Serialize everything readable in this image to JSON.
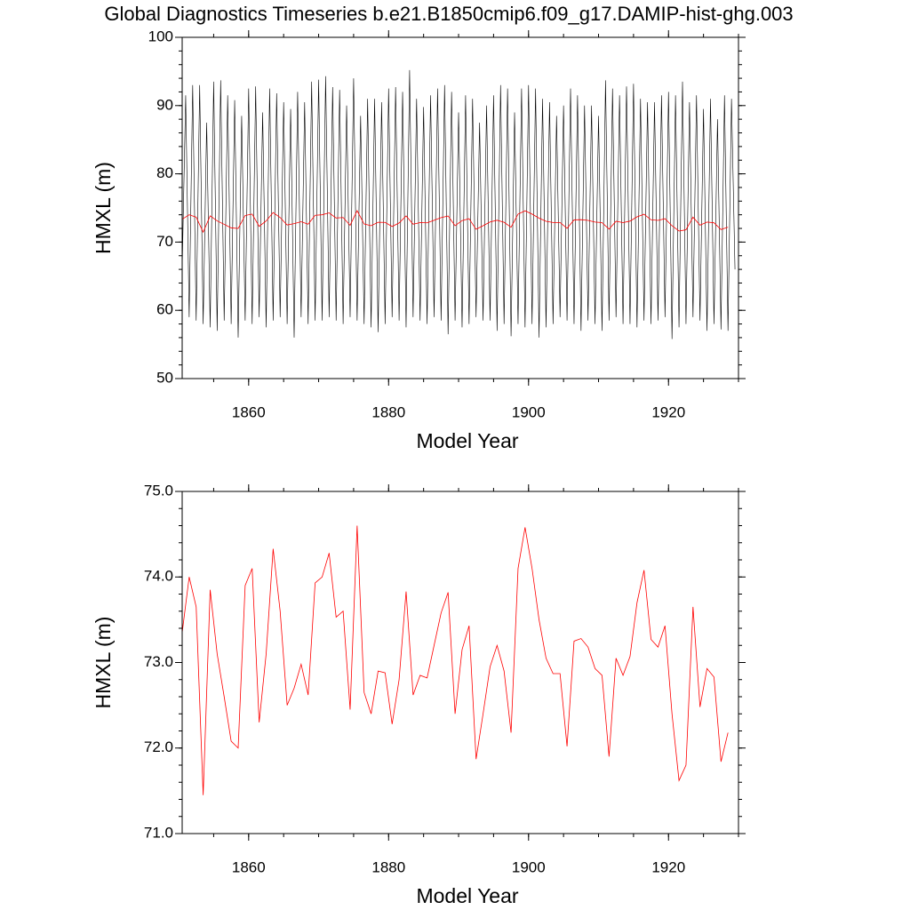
{
  "chart_data": [
    {
      "type": "line",
      "title": "Global Diagnostics Timeseries b.e21.B1850cmip6.f09_g17.DAMIP-hist-ghg.003",
      "xlabel": "Model Year",
      "ylabel": "HMXL (m)",
      "xlim": [
        1850.5,
        1930
      ],
      "xticks": [
        1860,
        1880,
        1900,
        1920
      ],
      "ylim": [
        50,
        100
      ],
      "yticks": [
        50,
        60,
        70,
        80,
        90,
        100
      ],
      "grid": false,
      "series": [
        {
          "color": "#000000",
          "x": [
            1850.5,
            1851,
            1851.5,
            1852,
            1852.5,
            1853,
            1853.5,
            1854,
            1854.5,
            1855,
            1855.5,
            1856,
            1856.5,
            1857,
            1857.5,
            1858,
            1858.5,
            1859,
            1859.5,
            1860,
            1860.5,
            1861,
            1861.5,
            1862,
            1862.5,
            1863,
            1863.5,
            1864,
            1864.5,
            1865,
            1865.5,
            1866,
            1866.5,
            1867,
            1867.5,
            1868,
            1868.5,
            1869,
            1869.5,
            1870,
            1870.5,
            1871,
            1871.5,
            1872,
            1872.5,
            1873,
            1873.5,
            1874,
            1874.5,
            1875,
            1875.5,
            1876,
            1876.5,
            1877,
            1877.5,
            1878,
            1878.5,
            1879,
            1879.5,
            1880,
            1880.5,
            1881,
            1881.5,
            1882,
            1882.5,
            1883,
            1883.5,
            1884,
            1884.5,
            1885,
            1885.5,
            1886,
            1886.5,
            1887,
            1887.5,
            1888,
            1888.5,
            1889,
            1889.5,
            1890,
            1890.5,
            1891,
            1891.5,
            1892,
            1892.5,
            1893,
            1893.5,
            1894,
            1894.5,
            1895,
            1895.5,
            1896,
            1896.5,
            1897,
            1897.5,
            1898,
            1898.5,
            1899,
            1899.5,
            1900,
            1900.5,
            1901,
            1901.5,
            1902,
            1902.5,
            1903,
            1903.5,
            1904,
            1904.5,
            1905,
            1905.5,
            1906,
            1906.5,
            1907,
            1907.5,
            1908,
            1908.5,
            1909,
            1909.5,
            1910,
            1910.5,
            1911,
            1911.5,
            1912,
            1912.5,
            1913,
            1913.5,
            1914,
            1914.5,
            1915,
            1915.5,
            1916,
            1916.5,
            1917,
            1917.5,
            1918,
            1918.5,
            1919,
            1919.5,
            1920,
            1920.5,
            1921,
            1921.5,
            1922,
            1922.5,
            1923,
            1923.5,
            1924,
            1924.5,
            1925,
            1925.5,
            1926,
            1926.5,
            1927,
            1927.5,
            1928,
            1928.5,
            1929,
            1929.5
          ],
          "values": [
            66,
            91.5,
            59,
            93,
            58.5,
            93,
            58,
            87.5,
            57.5,
            93.5,
            57,
            93.7,
            58.5,
            91.5,
            58,
            90.8,
            56,
            88.5,
            58.5,
            92.5,
            58,
            92.8,
            59,
            89,
            57.5,
            92.5,
            58.5,
            91.8,
            59,
            90.5,
            58,
            89.5,
            56,
            92,
            59,
            90.5,
            58,
            93.5,
            58.5,
            93.8,
            58.5,
            94.3,
            59,
            92.7,
            58.5,
            92.3,
            58,
            90,
            59,
            94,
            58.5,
            88.5,
            58,
            91,
            57.5,
            91,
            56.8,
            90.5,
            58,
            92.5,
            59,
            92.7,
            58.5,
            92,
            57.5,
            95.2,
            59,
            91,
            58.5,
            89.8,
            58,
            91.5,
            59,
            92.5,
            58.5,
            93,
            56.5,
            92,
            58.5,
            89,
            57.5,
            91.5,
            58,
            91,
            59,
            87.5,
            58.5,
            90,
            58.5,
            91.5,
            57,
            93,
            58,
            92.5,
            56.2,
            89,
            58,
            92.5,
            57.5,
            93,
            58,
            92.5,
            56,
            91,
            57.5,
            90.5,
            58,
            88.5,
            59,
            90,
            58.5,
            92.5,
            58,
            91.5,
            57,
            90,
            58.5,
            90,
            58,
            88.5,
            57,
            93.7,
            58.5,
            92.5,
            59,
            91.5,
            58,
            92.8,
            58,
            93.2,
            57.5,
            91,
            58.5,
            90.5,
            58,
            90.5,
            58.5,
            91.5,
            59,
            92,
            55.8,
            91.5,
            57.5,
            93.5,
            58,
            90.5,
            59,
            91.5,
            58.5,
            89.5,
            57,
            91,
            58,
            88,
            57.2,
            91.5,
            57,
            91,
            66
          ]
        },
        {
          "color": "#ff0000",
          "x": [
            1850.5,
            1851.5,
            1852.5,
            1853.5,
            1854.5,
            1855.5,
            1856.5,
            1857.5,
            1858.5,
            1859.5,
            1860.5,
            1861.5,
            1862.5,
            1863.5,
            1864.5,
            1865.5,
            1866.5,
            1867.5,
            1868.5,
            1869.5,
            1870.5,
            1871.5,
            1872.5,
            1873.5,
            1874.5,
            1875.5,
            1876.5,
            1877.5,
            1878.5,
            1879.5,
            1880.5,
            1881.5,
            1882.5,
            1883.5,
            1884.5,
            1885.5,
            1886.5,
            1887.5,
            1888.5,
            1889.5,
            1890.5,
            1891.5,
            1892.5,
            1893.5,
            1894.5,
            1895.5,
            1896.5,
            1897.5,
            1898.5,
            1899.5,
            1900.5,
            1901.5,
            1902.5,
            1903.5,
            1904.5,
            1905.5,
            1906.5,
            1907.5,
            1908.5,
            1909.5,
            1910.5,
            1911.5,
            1912.5,
            1913.5,
            1914.5,
            1915.5,
            1916.5,
            1917.5,
            1918.5,
            1919.5,
            1920.5,
            1921.5,
            1922.5,
            1923.5,
            1924.5,
            1925.5,
            1926.5,
            1927.5,
            1928.5
          ],
          "values": [
            73.35,
            74.0,
            73.65,
            71.45,
            73.85,
            73.1,
            72.6,
            72.08,
            72.0,
            73.9,
            74.1,
            72.3,
            73.1,
            74.33,
            73.6,
            72.5,
            72.7,
            72.98,
            72.62,
            73.93,
            74.0,
            74.28,
            73.53,
            73.6,
            72.45,
            74.6,
            72.65,
            72.4,
            72.9,
            72.88,
            72.28,
            72.8,
            73.83,
            72.62,
            72.85,
            72.82,
            73.2,
            73.58,
            73.82,
            72.4,
            73.15,
            73.43,
            71.87,
            72.4,
            72.95,
            73.2,
            72.9,
            72.18,
            74.1,
            74.58,
            74.1,
            73.5,
            73.05,
            72.87,
            72.87,
            72.02,
            73.25,
            73.28,
            73.18,
            72.93,
            72.85,
            71.9,
            73.05,
            72.85,
            73.07,
            73.7,
            74.08,
            73.27,
            73.18,
            73.43,
            72.4,
            71.62,
            71.8,
            73.65,
            72.48,
            72.93,
            72.83,
            71.84,
            72.18
          ]
        }
      ]
    },
    {
      "type": "line",
      "xlabel": "Model Year",
      "ylabel": "HMXL (m)",
      "xlim": [
        1850.5,
        1930
      ],
      "xticks": [
        1860,
        1880,
        1900,
        1920
      ],
      "ylim": [
        71,
        75
      ],
      "yticks": [
        {
          "value": 71,
          "label": "71.0"
        },
        {
          "value": 72,
          "label": "72.0"
        },
        {
          "value": 73,
          "label": "73.0"
        },
        {
          "value": 74,
          "label": "74.0"
        },
        {
          "value": 75,
          "label": "75.0"
        }
      ],
      "grid": false,
      "series": [
        {
          "color": "#ff0000",
          "x": [
            1850.5,
            1851.5,
            1852.5,
            1853.5,
            1854.5,
            1855.5,
            1856.5,
            1857.5,
            1858.5,
            1859.5,
            1860.5,
            1861.5,
            1862.5,
            1863.5,
            1864.5,
            1865.5,
            1866.5,
            1867.5,
            1868.5,
            1869.5,
            1870.5,
            1871.5,
            1872.5,
            1873.5,
            1874.5,
            1875.5,
            1876.5,
            1877.5,
            1878.5,
            1879.5,
            1880.5,
            1881.5,
            1882.5,
            1883.5,
            1884.5,
            1885.5,
            1886.5,
            1887.5,
            1888.5,
            1889.5,
            1890.5,
            1891.5,
            1892.5,
            1893.5,
            1894.5,
            1895.5,
            1896.5,
            1897.5,
            1898.5,
            1899.5,
            1900.5,
            1901.5,
            1902.5,
            1903.5,
            1904.5,
            1905.5,
            1906.5,
            1907.5,
            1908.5,
            1909.5,
            1910.5,
            1911.5,
            1912.5,
            1913.5,
            1914.5,
            1915.5,
            1916.5,
            1917.5,
            1918.5,
            1919.5,
            1920.5,
            1921.5,
            1922.5,
            1923.5,
            1924.5,
            1925.5,
            1926.5,
            1927.5,
            1928.5
          ],
          "values": [
            73.35,
            74.0,
            73.65,
            71.45,
            73.85,
            73.1,
            72.6,
            72.08,
            72.0,
            73.9,
            74.1,
            72.3,
            73.1,
            74.33,
            73.6,
            72.5,
            72.7,
            72.98,
            72.62,
            73.93,
            74.0,
            74.28,
            73.53,
            73.6,
            72.45,
            74.6,
            72.65,
            72.4,
            72.9,
            72.88,
            72.28,
            72.8,
            73.83,
            72.62,
            72.85,
            72.82,
            73.2,
            73.58,
            73.82,
            72.4,
            73.15,
            73.43,
            71.87,
            72.4,
            72.95,
            73.2,
            72.9,
            72.18,
            74.1,
            74.58,
            74.1,
            73.5,
            73.05,
            72.87,
            72.87,
            72.02,
            73.25,
            73.28,
            73.18,
            72.93,
            72.85,
            71.9,
            73.05,
            72.85,
            73.07,
            73.7,
            74.08,
            73.27,
            73.18,
            73.43,
            72.4,
            71.62,
            71.8,
            73.65,
            72.48,
            72.93,
            72.83,
            71.84,
            72.18
          ]
        }
      ]
    }
  ]
}
